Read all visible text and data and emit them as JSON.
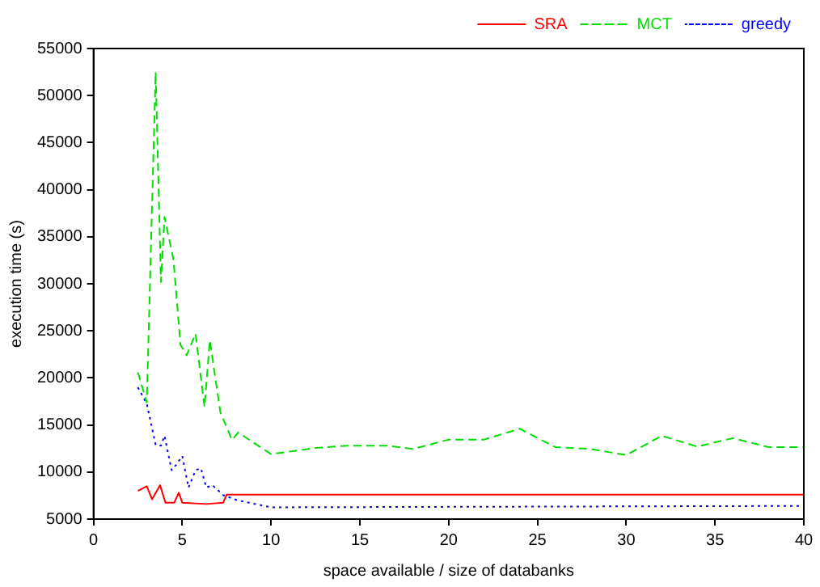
{
  "chart_data": {
    "type": "line",
    "xlabel": "space available / size of databanks",
    "ylabel": "execution time (s)",
    "xlim": [
      0,
      40
    ],
    "xticks": [
      0,
      5,
      10,
      15,
      20,
      25,
      30,
      35,
      40
    ],
    "ylim": [
      5000,
      55000
    ],
    "yticks": [
      5000,
      10000,
      15000,
      20000,
      25000,
      30000,
      35000,
      40000,
      45000,
      50000,
      55000
    ],
    "grid": false,
    "legend": "top right",
    "marker": "none",
    "series": [
      {
        "name": "SRA",
        "color": "#ff0000",
        "line_style": "solid",
        "x": [
          2.5,
          3,
          3.3,
          3.75,
          4.05,
          4.55,
          4.8,
          5,
          6.35,
          7.3,
          7.5,
          40
        ],
        "values": [
          8000,
          8500,
          7100,
          8600,
          6750,
          6750,
          7800,
          6750,
          6600,
          6750,
          7600,
          7600
        ]
      },
      {
        "name": "MCT",
        "color": "#00dd00",
        "line_style": "dashed",
        "x": [
          2.5,
          3,
          3.5,
          3.8,
          4,
          4.5,
          4.9,
          5.25,
          5.75,
          6.25,
          6.55,
          7.15,
          7.45,
          7.8,
          8.15,
          10,
          12.5,
          14.3,
          16.5,
          18,
          20,
          22,
          24,
          26,
          28,
          30,
          32,
          34,
          36,
          38,
          40
        ],
        "values": [
          20600,
          17400,
          52500,
          30200,
          37100,
          32600,
          23500,
          22400,
          24700,
          16900,
          24000,
          16300,
          15000,
          13400,
          14200,
          11900,
          12550,
          12800,
          12800,
          12450,
          13450,
          13450,
          14600,
          12650,
          12450,
          11800,
          13850,
          12700,
          13600,
          12650,
          12650
        ]
      },
      {
        "name": "greedy",
        "color": "#0000ff",
        "line_style": "dotted",
        "x": [
          2.5,
          3,
          3.5,
          3.8,
          4,
          4.4,
          4.65,
          5,
          5.35,
          5.75,
          6.05,
          6.35,
          6.7,
          7.3,
          8.1,
          10,
          40
        ],
        "values": [
          19000,
          17250,
          12900,
          12800,
          13850,
          10200,
          10750,
          11700,
          8350,
          10200,
          10400,
          8350,
          8600,
          7550,
          7000,
          6250,
          6400
        ]
      }
    ]
  }
}
